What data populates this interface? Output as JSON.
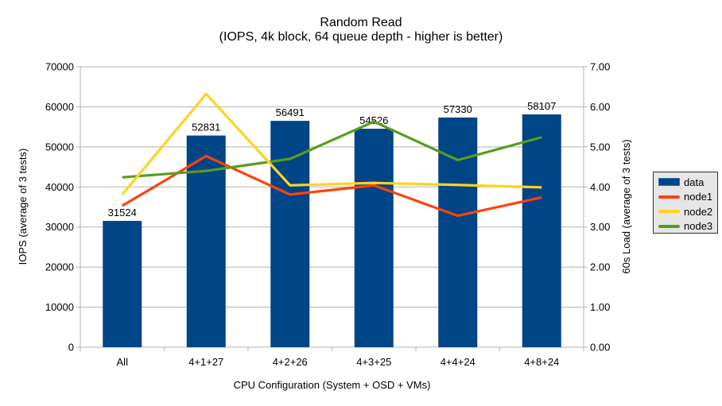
{
  "chart_data": {
    "type": "bar",
    "title": "Random Read",
    "subtitle": "(IOPS, 4k block, 64 queue depth - higher is better)",
    "xlabel": "CPU Configuration (System + OSD + VMs)",
    "ylabel_left": "IOPS (average of 3 tests)",
    "ylabel_right": "60s Load (average of 3 tests)",
    "categories": [
      "All",
      "4+1+27",
      "4+2+26",
      "4+3+25",
      "4+4+24",
      "4+8+24"
    ],
    "ylim_left": [
      0,
      70000
    ],
    "ylim_right": [
      0,
      7
    ],
    "yticks_left": [
      "0",
      "10000",
      "20000",
      "30000",
      "40000",
      "50000",
      "60000",
      "70000"
    ],
    "yticks_right": [
      "0.00",
      "1.00",
      "2.00",
      "3.00",
      "4.00",
      "5.00",
      "6.00",
      "7.00"
    ],
    "grid": true,
    "legend_position": "right",
    "series": [
      {
        "name": "data",
        "type": "bar",
        "axis": "left",
        "color": "#004586",
        "values": [
          31524,
          52831,
          56491,
          54526,
          57330,
          58107
        ],
        "data_labels": true
      },
      {
        "name": "node1",
        "type": "line",
        "axis": "right",
        "color": "#ff420e",
        "values": [
          3.53,
          4.77,
          3.81,
          4.04,
          3.28,
          3.74
        ]
      },
      {
        "name": "node2",
        "type": "line",
        "axis": "right",
        "color": "#ffd320",
        "values": [
          3.81,
          6.32,
          4.04,
          4.1,
          4.05,
          3.99
        ]
      },
      {
        "name": "node3",
        "type": "line",
        "axis": "right",
        "color": "#579d1c",
        "values": [
          4.24,
          4.4,
          4.7,
          5.63,
          4.67,
          5.24
        ]
      }
    ],
    "colors": {
      "grid": "#b3b3b3",
      "axis": "#b3b3b3",
      "text": "#000000",
      "legend_bg": "#e6e6e6",
      "legend_border": "#333333",
      "bar_swatch_border": "#3a6ba1",
      "background": "#ffffff"
    }
  }
}
